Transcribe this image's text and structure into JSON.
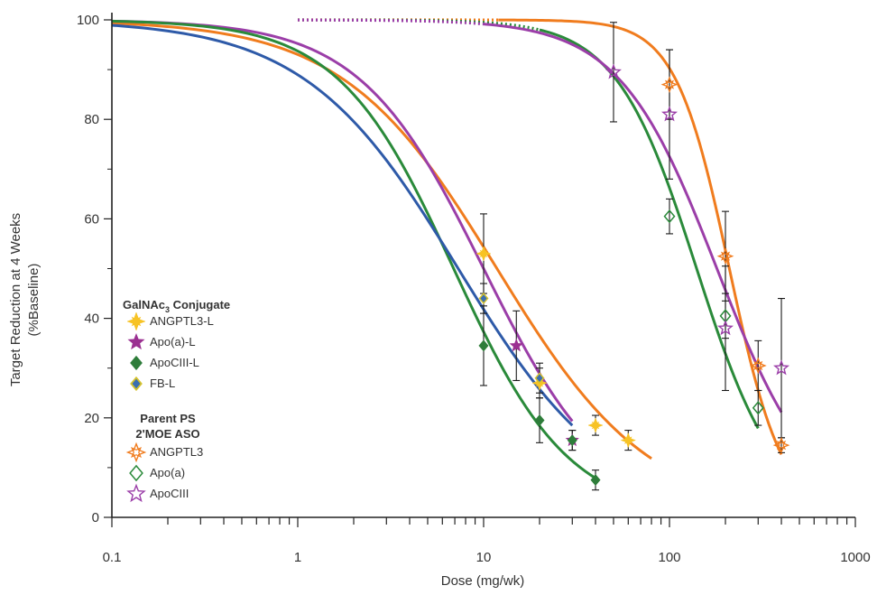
{
  "chart_data": {
    "type": "scatter",
    "xlabel": "Dose (mg/wk)",
    "ylabel_line1": "Target Reduction at 4 Weeks",
    "ylabel_line2": "(%Baseline)",
    "xscale": "log",
    "xlim": [
      0.1,
      1000
    ],
    "ylim": [
      0,
      100
    ],
    "x_ticks": [
      {
        "value": 0.1,
        "label": "0.1"
      },
      {
        "value": 1,
        "label": "1"
      },
      {
        "value": 10,
        "label": "10"
      },
      {
        "value": 100,
        "label": "100"
      },
      {
        "value": 1000,
        "label": "1000"
      }
    ],
    "y_ticks": [
      {
        "value": 0,
        "label": "0"
      },
      {
        "value": 20,
        "label": "20"
      },
      {
        "value": 40,
        "label": "40"
      },
      {
        "value": 60,
        "label": "60"
      },
      {
        "value": 80,
        "label": "80"
      },
      {
        "value": 100,
        "label": "100"
      }
    ],
    "grid": false,
    "legend_position": "left-center",
    "legend_groups": [
      {
        "title": "GalNAc",
        "title_sub": "3",
        "title_suffix": " Conjugate",
        "series": [
          "ANGPTL3-L",
          "Apo(a)-L",
          "ApoCIII-L",
          "FB-L"
        ]
      },
      {
        "title_line1": "Parent PS",
        "title_line2": "2'MOE ASO",
        "series": [
          "ANGPTL3",
          "Apo(a)",
          "ApoCIII"
        ]
      }
    ],
    "series": [
      {
        "name": "ANGPTL3-L",
        "group": "GalNAc",
        "marker": "star4-filled",
        "color": "#f7c325",
        "curve_color": "#f07c1e",
        "curve": {
          "ec50": 11.8,
          "hill": 1.05,
          "x_start": 0.1,
          "x_end": 80
        },
        "points": [
          {
            "x": 10,
            "y": 53,
            "err": 8
          },
          {
            "x": 20,
            "y": 27,
            "err": 3
          },
          {
            "x": 40,
            "y": 18.5,
            "err": 2
          },
          {
            "x": 60,
            "y": 15.5,
            "err": 2
          }
        ]
      },
      {
        "name": "Apo(a)-L",
        "group": "GalNAc",
        "marker": "star5-filled",
        "color": "#9b3091",
        "curve_color": "#9b3ea8",
        "curve": {
          "ec50": 10.0,
          "hill": 1.3,
          "x_start": 0.1,
          "x_end": 30
        },
        "points": [
          {
            "x": 15,
            "y": 34.5,
            "err": 7
          },
          {
            "x": 30,
            "y": 15.5,
            "err": 2
          }
        ]
      },
      {
        "name": "ApoCIII-L",
        "group": "GalNAc",
        "marker": "diamond-filled",
        "color": "#2e7d3a",
        "curve_color": "#2a8a3a",
        "curve": {
          "ec50": 6.9,
          "hill": 1.4,
          "x_start": 0.1,
          "x_end": 40
        },
        "points": [
          {
            "x": 10,
            "y": 34.5,
            "err": 8
          },
          {
            "x": 20,
            "y": 19.5,
            "err": 4.5
          },
          {
            "x": 30,
            "y": 15.5,
            "err": 2
          },
          {
            "x": 40,
            "y": 7.5,
            "err": 2
          }
        ]
      },
      {
        "name": "FB-L",
        "group": "GalNAc",
        "marker": "diamond-two-tone",
        "color": "#3b6fb0",
        "color2": "#d6c32e",
        "curve_color": "#2e5aa8",
        "curve": {
          "ec50": 7.3,
          "hill": 1.05,
          "x_start": 0.1,
          "x_end": 30
        },
        "points": [
          {
            "x": 10,
            "y": 44,
            "err": 3
          },
          {
            "x": 20,
            "y": 28,
            "err": 3
          }
        ]
      },
      {
        "name": "ANGPTL3",
        "group": "Parent",
        "marker": "star4-open",
        "color": "#f07c1e",
        "curve_color": "#f07c1e",
        "curve": {
          "ec50": 210,
          "hill": 3.0,
          "x_start": 1,
          "x_end": 400,
          "dotted_until": 12
        },
        "points": [
          {
            "x": 100,
            "y": 87,
            "err": 7
          },
          {
            "x": 200,
            "y": 52.5,
            "err": 9
          },
          {
            "x": 300,
            "y": 30.5,
            "err": 5
          },
          {
            "x": 400,
            "y": 14.5,
            "err": 1.5
          }
        ]
      },
      {
        "name": "Apo(a)",
        "group": "Parent",
        "marker": "diamond-open",
        "color": "#2a8a3a",
        "curve_color": "#2a8a3a",
        "curve": {
          "ec50": 140,
          "hill": 2.0,
          "x_start": 1,
          "x_end": 300,
          "dotted_until": 20
        },
        "points": [
          {
            "x": 100,
            "y": 60.5,
            "err": 3.5
          },
          {
            "x": 200,
            "y": 40.5,
            "err": 4.5
          },
          {
            "x": 300,
            "y": 22,
            "err": 3.5
          }
        ]
      },
      {
        "name": "ApoCIII",
        "group": "Parent",
        "marker": "star5-open",
        "color": "#9b3ea8",
        "curve_color": "#9b3ea8",
        "curve": {
          "ec50": 180,
          "hill": 1.65,
          "x_start": 1,
          "x_end": 400,
          "dotted_until": 10
        },
        "points": [
          {
            "x": 50,
            "y": 89.5,
            "err": 10
          },
          {
            "x": 100,
            "y": 81,
            "err": 13
          },
          {
            "x": 200,
            "y": 38,
            "err": 12.5
          },
          {
            "x": 400,
            "y": 30,
            "err": 14
          }
        ]
      }
    ]
  }
}
